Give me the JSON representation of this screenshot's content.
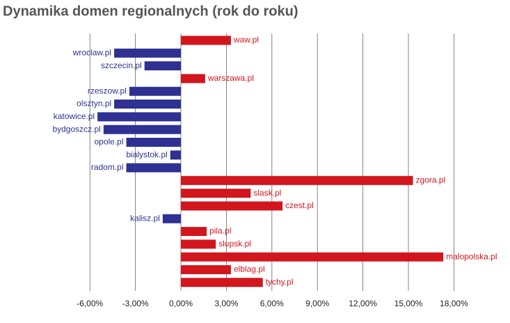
{
  "chart_data": {
    "type": "hbar",
    "title": "Dynamika domen regionalnych (rok do roku)",
    "categories": [
      "waw.pl",
      "wroclaw.pl",
      "szczecin.pl",
      "warszawa.pl",
      "rzeszow.pl",
      "olsztyn.pl",
      "katowice.pl",
      "bydgoszcz.pl",
      "opole.pl",
      "bialystok.pl",
      "radom.pl",
      "zgora.pl",
      "slask.pl",
      "czest.pl",
      "kalisz.pl",
      "pila.pl",
      "slupsk.pl",
      "malopolska.pl",
      "elblag.pl",
      "tychy.pl"
    ],
    "values": [
      3.3,
      -4.4,
      -2.4,
      1.6,
      -3.4,
      -4.4,
      -5.5,
      -5.1,
      -3.6,
      -0.7,
      -3.6,
      15.3,
      4.6,
      6.7,
      -1.2,
      1.7,
      2.3,
      17.3,
      3.3,
      5.4
    ],
    "positive_color": "#d2161e",
    "negative_color": "#2e3192",
    "xlim": [
      -6,
      18
    ],
    "xticks": [
      {
        "value": -6,
        "label": "-6,00%"
      },
      {
        "value": -3,
        "label": "-3,00%"
      },
      {
        "value": 0,
        "label": "0,00%"
      },
      {
        "value": 3,
        "label": "3,00%"
      },
      {
        "value": 6,
        "label": "6,00%"
      },
      {
        "value": 9,
        "label": "9,00%"
      },
      {
        "value": 12,
        "label": "12,00%"
      },
      {
        "value": 15,
        "label": "15,00%"
      },
      {
        "value": 18,
        "label": "18,00%"
      }
    ],
    "grid": true
  }
}
